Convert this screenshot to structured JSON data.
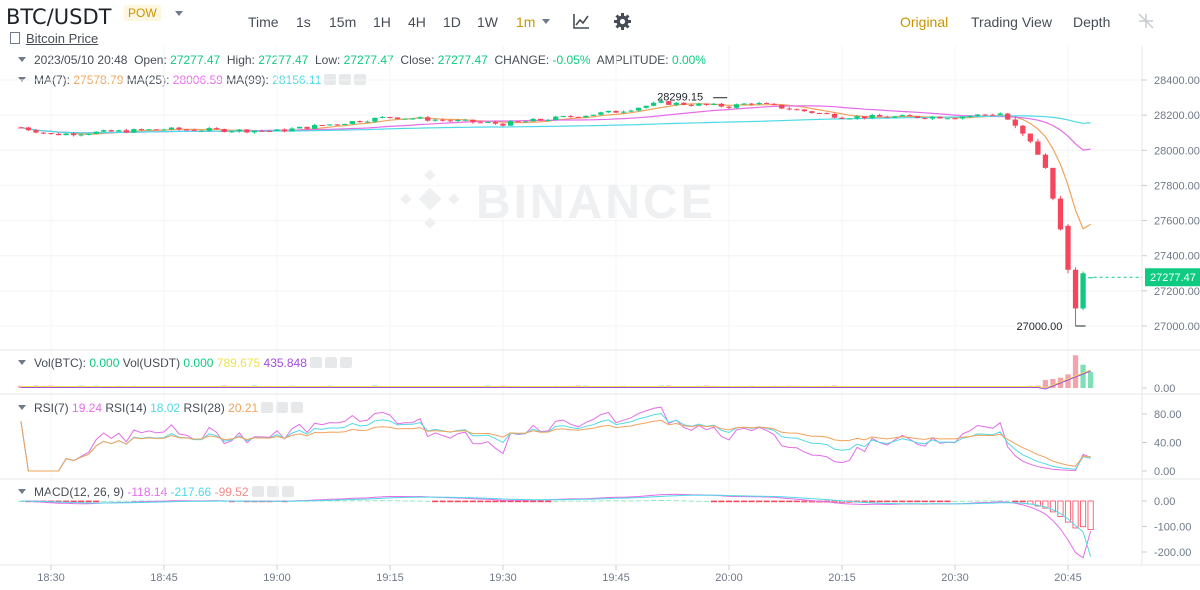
{
  "header": {
    "pair": "BTC/USDT",
    "tag": "POW",
    "subtitle": "Bitcoin Price",
    "intervals": [
      "Time",
      "1s",
      "15m",
      "1H",
      "4H",
      "1D",
      "1W"
    ],
    "active_interval": "1m",
    "views": [
      "Original",
      "Trading View",
      "Depth"
    ],
    "active_view": "Original",
    "icons": [
      "indicator-icon",
      "settings-gear-icon",
      "fullscreen-icon"
    ]
  },
  "ohlc": {
    "date": "2023/05/10 20:48",
    "open_label": "Open:",
    "open": "27277.47",
    "high_label": "High:",
    "high": "27277.47",
    "low_label": "Low:",
    "low": "27277.47",
    "close_label": "Close:",
    "close": "27277.47",
    "change_label": "CHANGE:",
    "change": "-0.05%",
    "amplitude_label": "AMPLITUDE:",
    "amplitude": "0.00%"
  },
  "ma_legend": [
    {
      "label": "MA(7):",
      "value": "27578.79",
      "color": "#f0a35b"
    },
    {
      "label": "MA(25):",
      "value": "28006.59",
      "color": "#e46de8"
    },
    {
      "label": "MA(99):",
      "value": "28156.11",
      "color": "#4fd9e6"
    }
  ],
  "vol_legend": [
    {
      "label": "Vol(BTC):",
      "value": "0.000",
      "color": "#0ecb81"
    },
    {
      "label": "Vol(USDT)",
      "value": "0.000",
      "color": "#0ecb81"
    },
    {
      "label": "",
      "value": "789.675",
      "color": "#f0e050"
    },
    {
      "label": "",
      "value": "435.848",
      "color": "#a34de0"
    }
  ],
  "rsi_legend": [
    {
      "label": "RSI(7)",
      "value": "19.24",
      "color": "#e46de8"
    },
    {
      "label": "RSI(14)",
      "value": "18.02",
      "color": "#4fd9e6"
    },
    {
      "label": "RSI(28)",
      "value": "20.21",
      "color": "#f0a35b"
    }
  ],
  "macd_legend": {
    "label": "MACD(12, 26, 9)",
    "values": [
      {
        "value": "-118.14",
        "color": "#e46de8"
      },
      {
        "value": "-217.66",
        "color": "#4fd9e6"
      },
      {
        "value": "-99.52",
        "color": "#f28a8a"
      }
    ]
  },
  "watermark": "BINANCE",
  "chart_data": {
    "type": "candlestick",
    "x_ticks": [
      "18:30",
      "18:45",
      "19:00",
      "19:15",
      "19:30",
      "19:45",
      "20:00",
      "20:15",
      "20:30",
      "20:45"
    ],
    "price_axis": {
      "ticks": [
        28400,
        28200,
        28000,
        27800,
        27600,
        27400,
        27200,
        27000
      ],
      "tick_labels": [
        "28400.00",
        "28200.00",
        "28000.00",
        "27800.00",
        "27600.00",
        "27400.00",
        "27200.00",
        "27000.00"
      ],
      "range": [
        26900,
        28520
      ]
    },
    "current_price_label": "27277.47",
    "annotations": [
      {
        "text": "28299.15",
        "kind": "high",
        "value": 28299.15,
        "time": "19:51"
      },
      {
        "text": "27000.00",
        "kind": "low",
        "value": 27000.0,
        "time": "20:46"
      }
    ],
    "key_points": {
      "close_path": [
        {
          "t": "18:26",
          "p": 28130
        },
        {
          "t": "18:30",
          "p": 28090
        },
        {
          "t": "18:45",
          "p": 28120
        },
        {
          "t": "19:00",
          "p": 28110
        },
        {
          "t": "19:15",
          "p": 28190
        },
        {
          "t": "19:30",
          "p": 28150
        },
        {
          "t": "19:45",
          "p": 28220
        },
        {
          "t": "19:51",
          "p": 28270
        },
        {
          "t": "20:00",
          "p": 28250
        },
        {
          "t": "20:03",
          "p": 28270
        },
        {
          "t": "20:15",
          "p": 28190
        },
        {
          "t": "20:30",
          "p": 28190
        },
        {
          "t": "20:36",
          "p": 28210
        },
        {
          "t": "20:38",
          "p": 28140
        },
        {
          "t": "20:40",
          "p": 28050
        },
        {
          "t": "20:42",
          "p": 27900
        },
        {
          "t": "20:44",
          "p": 27550
        },
        {
          "t": "20:46",
          "p": 27100
        },
        {
          "t": "20:47",
          "p": 27300
        },
        {
          "t": "20:48",
          "p": 27277.47
        }
      ]
    },
    "ma_series": [
      {
        "name": "MA(7)",
        "last": 27578.79
      },
      {
        "name": "MA(25)",
        "last": 28006.59
      },
      {
        "name": "MA(99)",
        "last": 28156.11
      }
    ],
    "volume_axis": {
      "ticks": [
        0
      ],
      "tick_labels": [
        "0.00"
      ]
    },
    "rsi_axis": {
      "ticks": [
        80,
        40,
        0
      ],
      "tick_labels": [
        "80.00",
        "40.00",
        "0.00"
      ]
    },
    "macd_axis": {
      "ticks": [
        0,
        -100,
        -200
      ],
      "tick_labels": [
        "0.00",
        "-100.00",
        "-200.00"
      ]
    }
  }
}
